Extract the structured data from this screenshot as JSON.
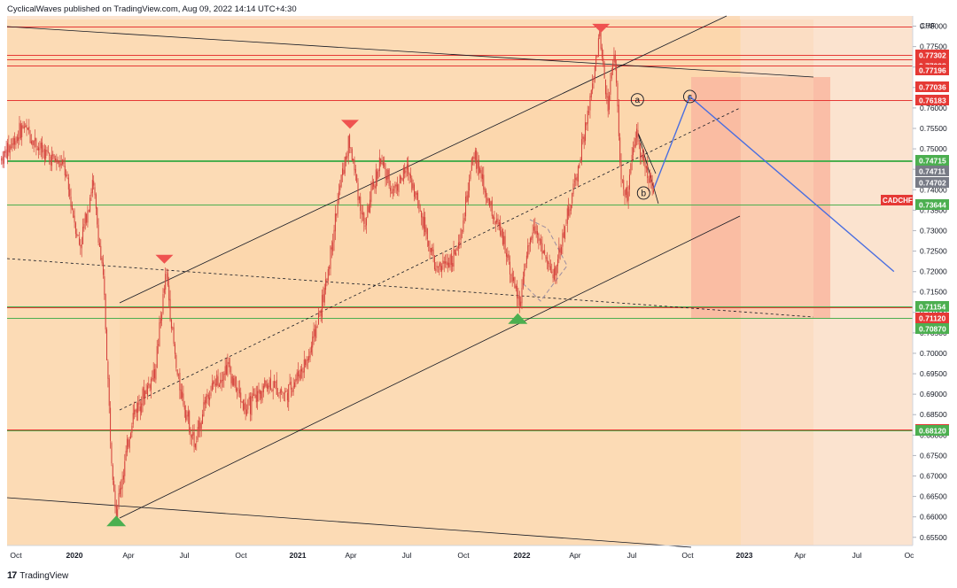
{
  "header": {
    "text": "CyclicalWaves published on TradingView.com, Aug 09, 2022 14:14 UTC+4:30"
  },
  "footer": {
    "logo": "17",
    "brand": "TradingView"
  },
  "colors": {
    "background": "#fbe3cf",
    "channel_fill": "#fcd9b0",
    "target_zone": "#f9b7a0",
    "candle": "#d43f3a",
    "red_line": "#e53935",
    "green_line": "#4caf50",
    "projection": "#4a6ee0",
    "up_marker": "#4caf50",
    "down_marker": "#ef5350"
  },
  "chart_data": {
    "type": "candlestick",
    "symbol": "CADCHF",
    "currency": "CHF",
    "x_labels": [
      "Oct",
      "2020",
      "Apr",
      "Jul",
      "Oct",
      "2021",
      "Apr",
      "Jul",
      "Oct",
      "2022",
      "Apr",
      "Jul",
      "Oct",
      "2023",
      "Apr",
      "Jul",
      "Oc"
    ],
    "y_ticks": [
      0.655,
      0.66,
      0.665,
      0.67,
      0.675,
      0.68,
      0.685,
      0.69,
      0.695,
      0.7,
      0.705,
      0.71,
      0.715,
      0.72,
      0.725,
      0.73,
      0.735,
      0.74,
      0.745,
      0.75,
      0.755,
      0.76,
      0.765,
      0.77,
      0.775,
      0.78
    ],
    "ylim": [
      0.653,
      0.7825
    ],
    "price_path": [
      {
        "date": "2019-09-15",
        "price": 0.7475
      },
      {
        "date": "2019-10-20",
        "price": 0.7555
      },
      {
        "date": "2019-11-20",
        "price": 0.7495
      },
      {
        "date": "2019-12-25",
        "price": 0.7455
      },
      {
        "date": "2020-01-20",
        "price": 0.726
      },
      {
        "date": "2020-02-10",
        "price": 0.742
      },
      {
        "date": "2020-02-28",
        "price": 0.716
      },
      {
        "date": "2020-03-10",
        "price": 0.678
      },
      {
        "date": "2020-03-19",
        "price": 0.661
      },
      {
        "date": "2020-04-15",
        "price": 0.685
      },
      {
        "date": "2020-05-20",
        "price": 0.695
      },
      {
        "date": "2020-06-08",
        "price": 0.72
      },
      {
        "date": "2020-06-25",
        "price": 0.695
      },
      {
        "date": "2020-07-25",
        "price": 0.677
      },
      {
        "date": "2020-08-10",
        "price": 0.689
      },
      {
        "date": "2020-09-15",
        "price": 0.697
      },
      {
        "date": "2020-10-15",
        "price": 0.686
      },
      {
        "date": "2020-11-20",
        "price": 0.693
      },
      {
        "date": "2020-12-20",
        "price": 0.69
      },
      {
        "date": "2021-01-25",
        "price": 0.699
      },
      {
        "date": "2021-02-20",
        "price": 0.715
      },
      {
        "date": "2021-03-18",
        "price": 0.742
      },
      {
        "date": "2021-04-01",
        "price": 0.752
      },
      {
        "date": "2021-04-25",
        "price": 0.731
      },
      {
        "date": "2021-05-20",
        "price": 0.747
      },
      {
        "date": "2021-06-10",
        "price": 0.74
      },
      {
        "date": "2021-07-05",
        "price": 0.745
      },
      {
        "date": "2021-07-25",
        "price": 0.735
      },
      {
        "date": "2021-08-20",
        "price": 0.72
      },
      {
        "date": "2021-09-25",
        "price": 0.725
      },
      {
        "date": "2021-10-20",
        "price": 0.749
      },
      {
        "date": "2021-11-10",
        "price": 0.738
      },
      {
        "date": "2021-12-10",
        "price": 0.726
      },
      {
        "date": "2022-01-01",
        "price": 0.712
      },
      {
        "date": "2022-01-25",
        "price": 0.732
      },
      {
        "date": "2022-02-25",
        "price": 0.718
      },
      {
        "date": "2022-03-15",
        "price": 0.73
      },
      {
        "date": "2022-04-05",
        "price": 0.744
      },
      {
        "date": "2022-04-25",
        "price": 0.76
      },
      {
        "date": "2022-05-12",
        "price": 0.778
      },
      {
        "date": "2022-05-25",
        "price": 0.76
      },
      {
        "date": "2022-06-05",
        "price": 0.776
      },
      {
        "date": "2022-06-15",
        "price": 0.742
      },
      {
        "date": "2022-06-25",
        "price": 0.738
      },
      {
        "date": "2022-07-10",
        "price": 0.754
      },
      {
        "date": "2022-07-25",
        "price": 0.745
      },
      {
        "date": "2022-08-08",
        "price": 0.7404
      }
    ],
    "horizontal_levels": [
      {
        "price": 0.77302,
        "color": "#e53935",
        "label": "0.77302"
      },
      {
        "price": 0.77298,
        "color": "#e53935",
        "label": "0.77298"
      },
      {
        "price": 0.77196,
        "color": "#e53935",
        "label": "0.77196"
      },
      {
        "price": 0.77036,
        "color": "#e53935",
        "label": "0.77036"
      },
      {
        "price": 0.76183,
        "color": "#e53935",
        "label": "0.76183"
      },
      {
        "price": 0.74715,
        "color": "#4caf50",
        "label": "0.74715"
      },
      {
        "price": 0.74711,
        "color": "#787b86",
        "label": "0.74711"
      },
      {
        "price": 0.74702,
        "color": "#787b86",
        "label": "0.74702"
      },
      {
        "price": 0.73644,
        "color": "#4caf50",
        "label": "0.73644"
      },
      {
        "price": 0.71154,
        "color": "#4caf50",
        "label": "0.71154"
      },
      {
        "price": 0.7112,
        "color": "#e53935",
        "label": "0.71120"
      },
      {
        "price": 0.7087,
        "color": "#4caf50",
        "label": "0.70870"
      },
      {
        "price": 0.68131,
        "color": "#e53935",
        "label": "0.68131"
      },
      {
        "price": 0.6812,
        "color": "#4caf50",
        "label": "0.68120"
      }
    ],
    "symbol_badge": "CADCHF",
    "wave_labels": [
      {
        "label": "a",
        "date": "2022-07-12",
        "price": 0.762
      },
      {
        "label": "b",
        "date": "2022-07-22",
        "price": 0.7392
      },
      {
        "label": "c",
        "date": "2022-10-05",
        "price": 0.7628
      }
    ],
    "markers": [
      {
        "type": "down",
        "date": "2022-05-14",
        "price": 0.7795
      },
      {
        "type": "down",
        "date": "2021-04-02",
        "price": 0.756
      },
      {
        "type": "down",
        "date": "2020-06-05",
        "price": 0.723
      },
      {
        "type": "up",
        "date": "2020-03-19",
        "price": 0.659
      },
      {
        "type": "up",
        "date": "2021-12-30",
        "price": 0.7085
      }
    ],
    "projection": [
      {
        "date": "2022-08-08",
        "price": 0.7404
      },
      {
        "date": "2022-10-05",
        "price": 0.7628
      },
      {
        "date": "2023-09-01",
        "price": 0.72
      }
    ]
  }
}
